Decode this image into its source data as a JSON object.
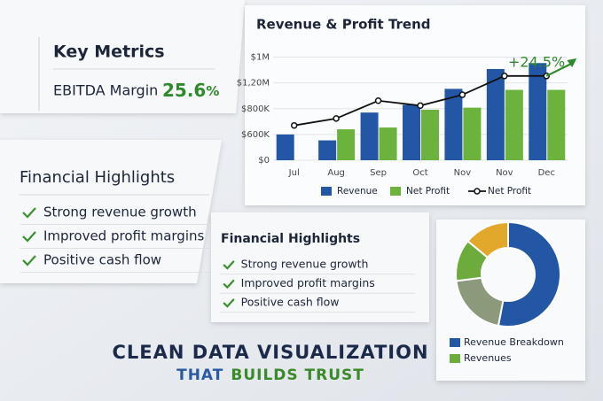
{
  "key_metrics": {
    "title": "Key Metrics",
    "label": "EBITDA Margin",
    "value": "25.6",
    "unit": "%"
  },
  "highlights_left": {
    "title": "Financial Highlights",
    "items": [
      "Strong revenue growth",
      "Improved profit margins",
      "Positive cash flow"
    ]
  },
  "highlights_right": {
    "title": "Financial Highlights",
    "items": [
      "Strong revenue growth",
      "Improved profit margins",
      "Positive cash flow"
    ]
  },
  "chart_data": [
    {
      "type": "bar",
      "title": "Revenue & Profit Trend",
      "categories": [
        "Jul",
        "Aug",
        "Sep",
        "Oct",
        "Nov",
        "Nov",
        "Dec"
      ],
      "ylim": [
        0,
        4.5
      ],
      "yticks": [
        {
          "value": 0,
          "label": "$0"
        },
        {
          "value": 1,
          "label": "$600K"
        },
        {
          "value": 2,
          "label": "$800K"
        },
        {
          "value": 3,
          "label": "$1,20M"
        },
        {
          "value": 4,
          "label": "$1M"
        }
      ],
      "grid": true,
      "series": [
        {
          "name": "Revenue",
          "type": "bar",
          "color": "#2456a6",
          "values": [
            1.0,
            0.77,
            1.85,
            2.15,
            2.77,
            3.54,
            3.77
          ]
        },
        {
          "name": "Net Profit",
          "type": "bar",
          "color": "#6cb33e",
          "values": [
            null,
            1.2,
            1.27,
            1.96,
            2.04,
            2.73,
            2.73
          ]
        },
        {
          "name": "Net Profit",
          "type": "line",
          "color": "#111111",
          "values": [
            1.35,
            1.62,
            2.31,
            2.12,
            2.54,
            3.27,
            3.27
          ]
        }
      ],
      "annotation": "+24.5%"
    },
    {
      "type": "donut",
      "values": [
        53,
        20,
        13,
        14
      ],
      "colors": [
        "#2456a6",
        "#8a9a7a",
        "#6cab3c",
        "#e2a82c"
      ],
      "legend": [
        {
          "name": "Revenue Breakdown",
          "color": "#2456a6"
        },
        {
          "name": "Revenues",
          "color": "#6cab3c"
        }
      ]
    }
  ],
  "tagline": {
    "line1": "CLEAN DATA VISUALIZATION",
    "line2_a": "THAT",
    "line2_b": "BUILDS TRUST"
  }
}
